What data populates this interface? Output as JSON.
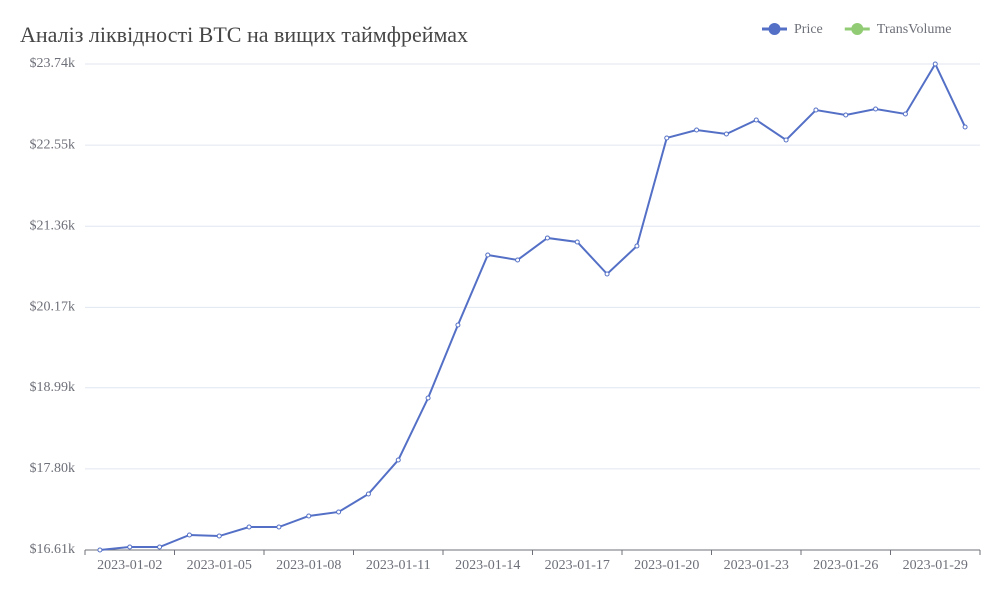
{
  "chart_data": {
    "type": "line",
    "title": "Аналіз ліквідності BTC на вищих таймфреймах",
    "categories": [
      null,
      "2023-01-02",
      null,
      null,
      "2023-01-05",
      null,
      null,
      "2023-01-08",
      null,
      null,
      "2023-01-11",
      null,
      null,
      "2023-01-14",
      null,
      null,
      "2023-01-17",
      null,
      null,
      "2023-01-20",
      null,
      null,
      "2023-01-23",
      null,
      null,
      "2023-01-26",
      null,
      null,
      "2023-01-29",
      null
    ],
    "series": [
      {
        "name": "Price",
        "color": "#5470c6",
        "values": [
          16610,
          16654,
          16654,
          16830,
          16815,
          16947,
          16947,
          17109,
          17168,
          17432,
          17930,
          18840,
          19911,
          20938,
          20865,
          21188,
          21129,
          20659,
          21070,
          22655,
          22772,
          22713,
          22919,
          22625,
          23065,
          22992,
          23080,
          23007,
          23740,
          22816
        ]
      },
      {
        "name": "TransVolume",
        "color": "#91cc75",
        "values": [
          null,
          null,
          null,
          null,
          null,
          null,
          null,
          null,
          null,
          null,
          null,
          null,
          null,
          null,
          null,
          null,
          null,
          null,
          null,
          null,
          null,
          null,
          null,
          null,
          null,
          null,
          null,
          null,
          null,
          null
        ]
      }
    ],
    "ylim": [
      16610,
      23740
    ],
    "yticks": [
      {
        "value": 16610,
        "label": "$16.61k"
      },
      {
        "value": 17800,
        "label": "$17.80k"
      },
      {
        "value": 18990,
        "label": "$18.99k"
      },
      {
        "value": 20170,
        "label": "$20.17k"
      },
      {
        "value": 21360,
        "label": "$21.36k"
      },
      {
        "value": 22550,
        "label": "$22.55k"
      },
      {
        "value": 23740,
        "label": "$23.74k"
      }
    ],
    "grid": true,
    "legend": "top-right"
  }
}
